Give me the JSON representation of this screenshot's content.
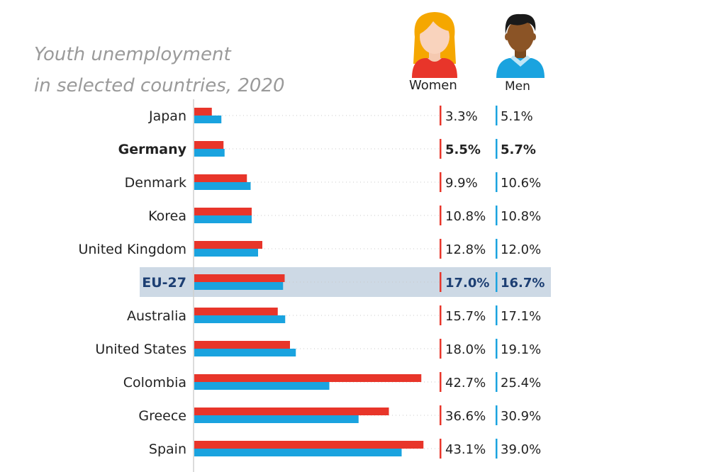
{
  "colors": {
    "women": "#e8352a",
    "men": "#1aa3df",
    "highlight": "#cdd9e5",
    "eu_text": "#1d3f73"
  },
  "icons": {
    "women": "woman-icon",
    "men": "man-icon"
  },
  "chart_data": {
    "type": "bar",
    "orientation": "horizontal",
    "title": "Youth unemployment in selected countries, 2020",
    "title_lines": [
      "Youth unemployment",
      "in selected countries, 2020"
    ],
    "categories": [
      "Japan",
      "Germany",
      "Denmark",
      "Korea",
      "United Kingdom",
      "EU-27",
      "Australia",
      "United States",
      "Colombia",
      "Greece",
      "Spain"
    ],
    "bold_categories": [
      "Germany"
    ],
    "highlight_category": "EU-27",
    "unit": "%",
    "xlim": [
      0,
      45
    ],
    "series": [
      {
        "name": "Women",
        "values": [
          3.3,
          5.5,
          9.9,
          10.8,
          12.8,
          17.0,
          15.7,
          18.0,
          42.7,
          36.6,
          43.1
        ],
        "labels": [
          "3.3%",
          "5.5%",
          "9.9%",
          "10.8%",
          "12.8%",
          "17.0%",
          "15.7%",
          "18.0%",
          "42.7%",
          "36.6%",
          "43.1%"
        ]
      },
      {
        "name": "Men",
        "values": [
          5.1,
          5.7,
          10.6,
          10.8,
          12.0,
          16.7,
          17.1,
          19.1,
          25.4,
          30.9,
          39.0
        ],
        "labels": [
          "5.1%",
          "5.7%",
          "10.6%",
          "10.8%",
          "12.0%",
          "16.7%",
          "17.1%",
          "19.1%",
          "25.4%",
          "30.9%",
          "39.0%"
        ]
      }
    ]
  }
}
